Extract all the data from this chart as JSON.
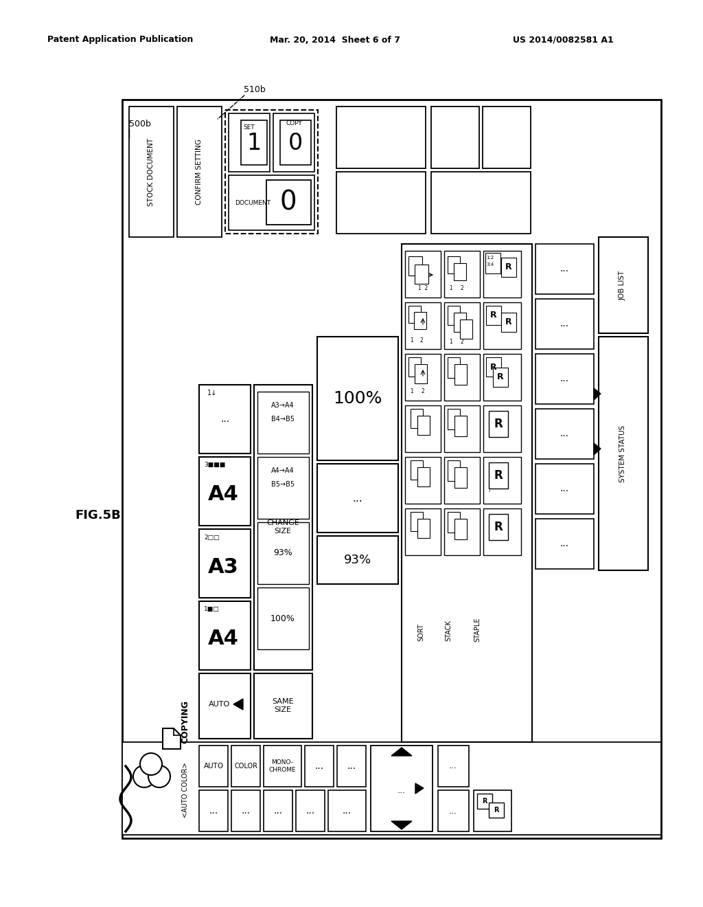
{
  "header_left": "Patent Application Publication",
  "header_center": "Mar. 20, 2014  Sheet 6 of 7",
  "header_right": "US 2014/0082581 A1",
  "fig_label": "FIG.5B",
  "label_500b": "500b",
  "label_510b": "510b",
  "bg_color": "#ffffff"
}
